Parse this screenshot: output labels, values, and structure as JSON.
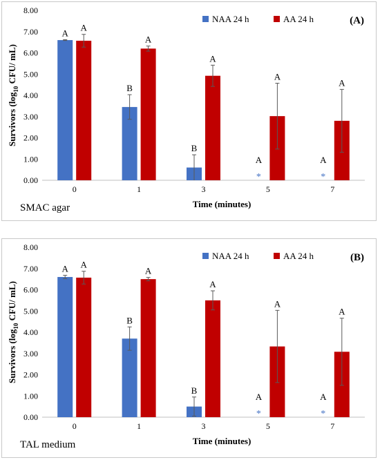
{
  "chart_data": [
    {
      "type": "bar",
      "panel_label": "(A)",
      "medium_label": "SMAC agar",
      "xlabel": "Time (minutes)",
      "ylabel_parts": [
        "Survivors (log",
        "10",
        " CFU/ mL)"
      ],
      "categories": [
        "0",
        "1",
        "3",
        "5",
        "7"
      ],
      "ylim": [
        0,
        8
      ],
      "yticks": [
        "0.00",
        "1.00",
        "2.00",
        "3.00",
        "4.00",
        "5.00",
        "6.00",
        "7.00",
        "8.00"
      ],
      "legend_position": "top",
      "series": [
        {
          "name": "NAA 24 h",
          "color": "#4472c4",
          "values": [
            6.6,
            3.45,
            0.6,
            0,
            0
          ],
          "errors": [
            0.02,
            0.58,
            0.6,
            0,
            0
          ],
          "letters": [
            "A",
            "B",
            "B",
            "A",
            "A"
          ],
          "markers": [
            "",
            "",
            "",
            "*",
            "*"
          ]
        },
        {
          "name": "AA 24 h",
          "color": "#c00000",
          "values": [
            6.57,
            6.2,
            4.92,
            3.02,
            2.8
          ],
          "errors": [
            0.3,
            0.12,
            0.5,
            1.55,
            1.48
          ],
          "letters": [
            "A",
            "A",
            "A",
            "A",
            "A"
          ],
          "markers": [
            "",
            "",
            "",
            "",
            ""
          ]
        }
      ]
    },
    {
      "type": "bar",
      "panel_label": "(B)",
      "medium_label": "TAL medium",
      "xlabel": "Time (minutes)",
      "ylabel_parts": [
        "Survivors (log",
        "10",
        " CFU/ mL)"
      ],
      "categories": [
        "0",
        "1",
        "3",
        "5",
        "7"
      ],
      "ylim": [
        0,
        8
      ],
      "yticks": [
        "0.00",
        "1.00",
        "2.00",
        "3.00",
        "4.00",
        "5.00",
        "6.00",
        "7.00",
        "8.00"
      ],
      "legend_position": "top",
      "series": [
        {
          "name": "NAA 24 h",
          "color": "#4472c4",
          "values": [
            6.6,
            3.7,
            0.5,
            0,
            0
          ],
          "errors": [
            0.08,
            0.55,
            0.45,
            0,
            0
          ],
          "letters": [
            "A",
            "B",
            "B",
            "A",
            "A"
          ],
          "markers": [
            "",
            "",
            "",
            "*",
            "*"
          ]
        },
        {
          "name": "AA 24 h",
          "color": "#c00000",
          "values": [
            6.57,
            6.5,
            5.5,
            3.33,
            3.08
          ],
          "errors": [
            0.3,
            0.08,
            0.45,
            1.7,
            1.58
          ],
          "letters": [
            "A",
            "A",
            "A",
            "A",
            "A"
          ],
          "markers": [
            "",
            "",
            "",
            "",
            ""
          ]
        }
      ]
    }
  ]
}
